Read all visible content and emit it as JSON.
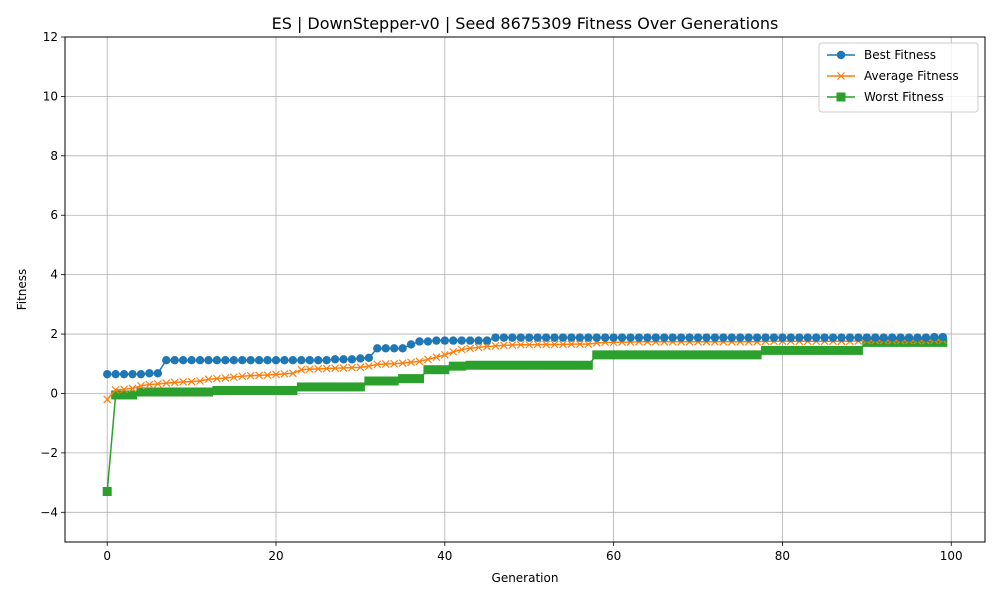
{
  "chart_data": {
    "type": "line",
    "title": "ES | DownStepper-v0 | Seed 8675309 Fitness Over Generations",
    "xlabel": "Generation",
    "ylabel": "Fitness",
    "xlim": [
      -5,
      104
    ],
    "ylim": [
      -5,
      12
    ],
    "xticks": [
      0,
      20,
      40,
      60,
      80,
      100
    ],
    "yticks": [
      -4,
      -2,
      0,
      2,
      4,
      6,
      8,
      10,
      12
    ],
    "grid": true,
    "legend_position": "top-right",
    "x": [
      0,
      1,
      2,
      3,
      4,
      5,
      6,
      7,
      8,
      9,
      10,
      11,
      12,
      13,
      14,
      15,
      16,
      17,
      18,
      19,
      20,
      21,
      22,
      23,
      24,
      25,
      26,
      27,
      28,
      29,
      30,
      31,
      32,
      33,
      34,
      35,
      36,
      37,
      38,
      39,
      40,
      41,
      42,
      43,
      44,
      45,
      46,
      47,
      48,
      49,
      50,
      51,
      52,
      53,
      54,
      55,
      56,
      57,
      58,
      59,
      60,
      61,
      62,
      63,
      64,
      65,
      66,
      67,
      68,
      69,
      70,
      71,
      72,
      73,
      74,
      75,
      76,
      77,
      78,
      79,
      80,
      81,
      82,
      83,
      84,
      85,
      86,
      87,
      88,
      89,
      90,
      91,
      92,
      93,
      94,
      95,
      96,
      97,
      98,
      99
    ],
    "series": [
      {
        "name": "Best Fitness",
        "color": "#1f77b4",
        "marker": "circle",
        "values": [
          0.65,
          0.65,
          0.65,
          0.65,
          0.65,
          0.68,
          0.68,
          1.12,
          1.12,
          1.12,
          1.12,
          1.12,
          1.12,
          1.12,
          1.12,
          1.12,
          1.12,
          1.12,
          1.12,
          1.12,
          1.12,
          1.12,
          1.12,
          1.12,
          1.12,
          1.12,
          1.12,
          1.15,
          1.15,
          1.15,
          1.18,
          1.2,
          1.52,
          1.52,
          1.52,
          1.52,
          1.65,
          1.75,
          1.75,
          1.78,
          1.78,
          1.78,
          1.78,
          1.78,
          1.78,
          1.78,
          1.88,
          1.88,
          1.88,
          1.88,
          1.88,
          1.88,
          1.88,
          1.88,
          1.88,
          1.88,
          1.88,
          1.88,
          1.88,
          1.88,
          1.88,
          1.88,
          1.88,
          1.88,
          1.88,
          1.88,
          1.88,
          1.88,
          1.88,
          1.88,
          1.88,
          1.88,
          1.88,
          1.88,
          1.88,
          1.88,
          1.88,
          1.88,
          1.88,
          1.88,
          1.88,
          1.88,
          1.88,
          1.88,
          1.88,
          1.88,
          1.88,
          1.88,
          1.88,
          1.88,
          1.88,
          1.88,
          1.88,
          1.88,
          1.88,
          1.88,
          1.88,
          1.88,
          1.9,
          1.9
        ]
      },
      {
        "name": "Average Fitness",
        "color": "#ff7f0e",
        "marker": "x",
        "values": [
          -0.2,
          0.12,
          0.14,
          0.17,
          0.26,
          0.3,
          0.32,
          0.35,
          0.37,
          0.39,
          0.4,
          0.42,
          0.48,
          0.5,
          0.52,
          0.55,
          0.58,
          0.6,
          0.61,
          0.62,
          0.64,
          0.66,
          0.68,
          0.8,
          0.82,
          0.83,
          0.84,
          0.85,
          0.86,
          0.87,
          0.88,
          0.92,
          0.98,
          0.99,
          1.0,
          1.02,
          1.05,
          1.08,
          1.15,
          1.22,
          1.3,
          1.4,
          1.48,
          1.52,
          1.55,
          1.58,
          1.6,
          1.62,
          1.63,
          1.64,
          1.64,
          1.65,
          1.65,
          1.65,
          1.65,
          1.66,
          1.66,
          1.66,
          1.7,
          1.72,
          1.72,
          1.73,
          1.73,
          1.74,
          1.74,
          1.74,
          1.74,
          1.74,
          1.74,
          1.74,
          1.74,
          1.74,
          1.74,
          1.74,
          1.74,
          1.74,
          1.74,
          1.74,
          1.76,
          1.76,
          1.76,
          1.76,
          1.76,
          1.76,
          1.76,
          1.76,
          1.76,
          1.76,
          1.76,
          1.77,
          1.78,
          1.78,
          1.78,
          1.78,
          1.78,
          1.78,
          1.78,
          1.78,
          1.8,
          1.8
        ]
      },
      {
        "name": "Worst Fitness",
        "color": "#2ca02c",
        "marker": "square",
        "values": [
          -3.3,
          -0.05,
          -0.05,
          -0.05,
          0.05,
          0.05,
          0.05,
          0.05,
          0.05,
          0.05,
          0.05,
          0.05,
          0.05,
          0.1,
          0.1,
          0.1,
          0.1,
          0.1,
          0.1,
          0.1,
          0.1,
          0.1,
          0.1,
          0.22,
          0.22,
          0.22,
          0.22,
          0.22,
          0.22,
          0.22,
          0.22,
          0.42,
          0.42,
          0.42,
          0.42,
          0.5,
          0.5,
          0.5,
          0.8,
          0.8,
          0.8,
          0.92,
          0.92,
          0.95,
          0.95,
          0.95,
          0.95,
          0.95,
          0.95,
          0.95,
          0.95,
          0.95,
          0.95,
          0.95,
          0.95,
          0.95,
          0.95,
          0.95,
          1.3,
          1.3,
          1.3,
          1.3,
          1.3,
          1.3,
          1.3,
          1.3,
          1.3,
          1.3,
          1.3,
          1.3,
          1.3,
          1.3,
          1.3,
          1.3,
          1.3,
          1.3,
          1.3,
          1.3,
          1.45,
          1.45,
          1.45,
          1.45,
          1.45,
          1.45,
          1.45,
          1.45,
          1.45,
          1.45,
          1.45,
          1.45,
          1.72,
          1.72,
          1.72,
          1.72,
          1.72,
          1.72,
          1.72,
          1.72,
          1.72,
          1.72
        ]
      }
    ]
  }
}
